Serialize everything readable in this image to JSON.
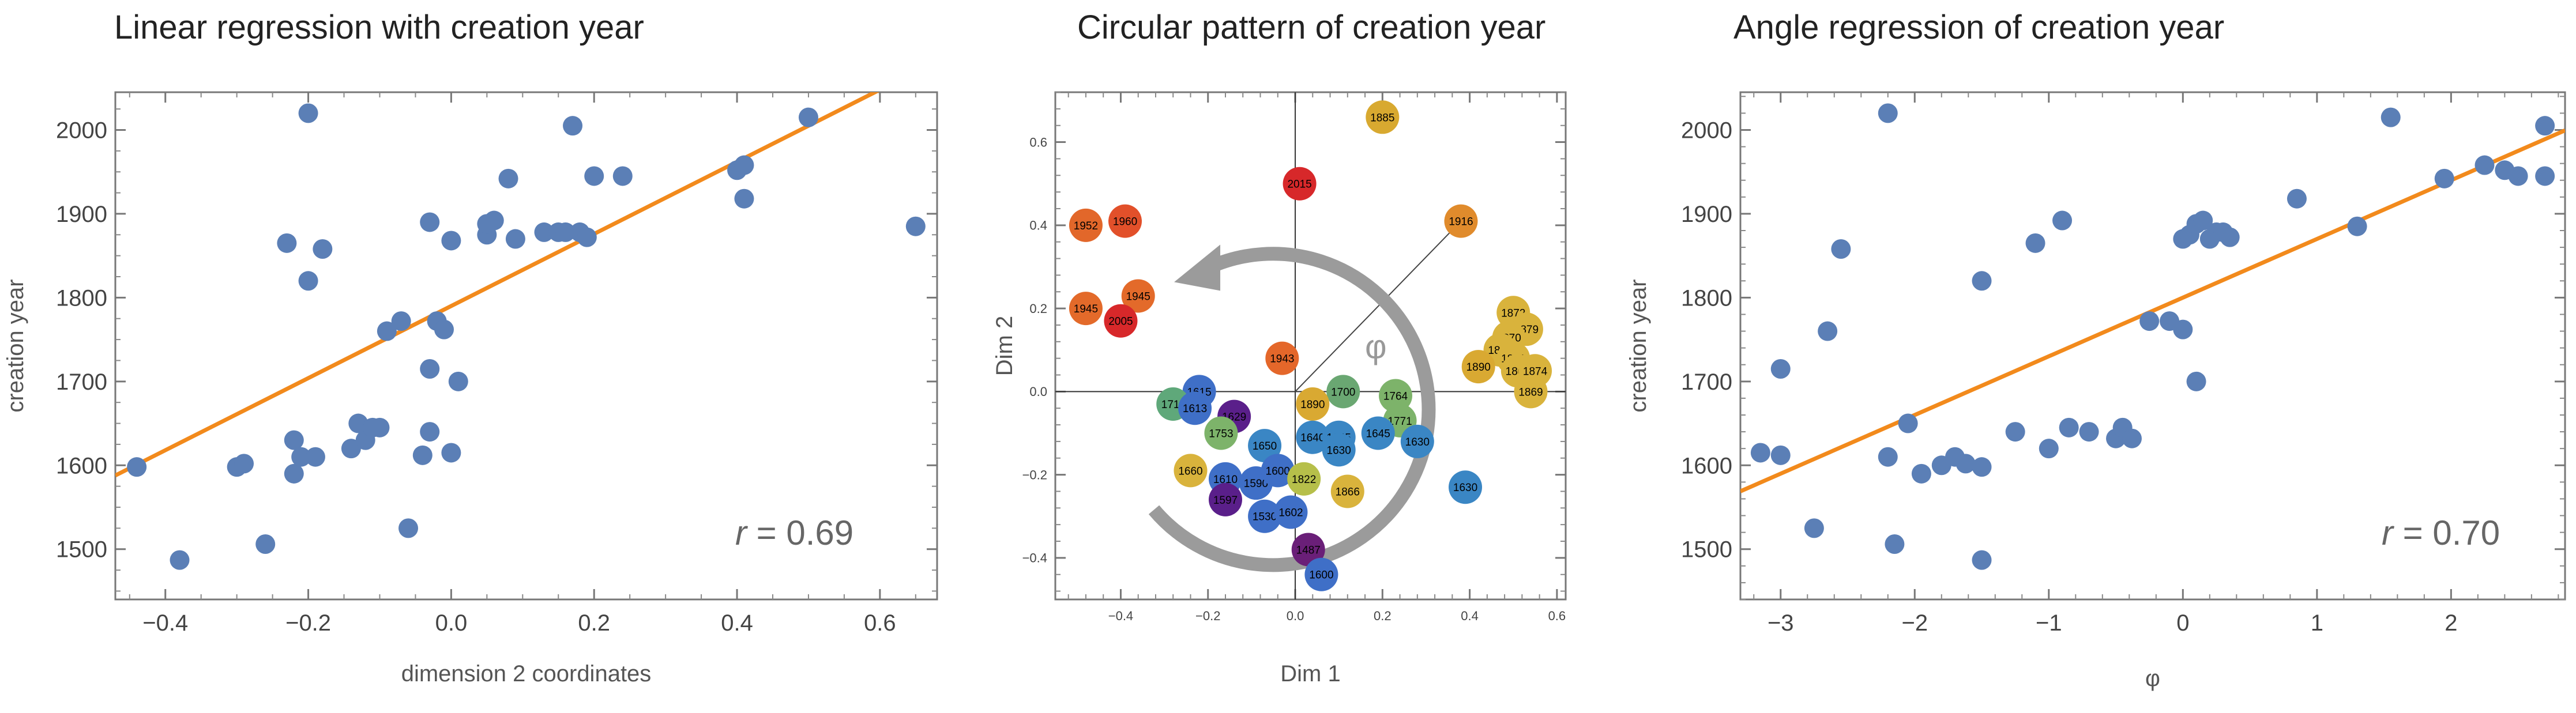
{
  "colors": {
    "point": "#5b7fb6",
    "fit": "#f28a1c",
    "arrow": "#9b9b9b"
  },
  "chart_data": [
    {
      "type": "scatter",
      "title": "Linear regression with creation year",
      "xlabel": "dimension 2 coordinates",
      "ylabel": "creation year",
      "xlim": [
        -0.47,
        0.68
      ],
      "ylim": [
        1440,
        2045
      ],
      "xticks": [
        "-0.4",
        "-0.2",
        "0.0",
        "0.2",
        "0.4",
        "0.6"
      ],
      "yticks": [
        "1500",
        "1600",
        "1700",
        "1800",
        "1900",
        "2000"
      ],
      "annotation": {
        "symbol": "r",
        "value": "= 0.69"
      },
      "fit_line": {
        "intercept": 1790,
        "slope": 430
      },
      "points": [
        [
          -0.44,
          1598
        ],
        [
          -0.38,
          1487
        ],
        [
          -0.3,
          1598
        ],
        [
          -0.29,
          1602
        ],
        [
          -0.26,
          1506
        ],
        [
          -0.23,
          1865
        ],
        [
          -0.22,
          1630
        ],
        [
          -0.22,
          1590
        ],
        [
          -0.21,
          1610
        ],
        [
          -0.2,
          1820
        ],
        [
          -0.2,
          2020
        ],
        [
          -0.19,
          1610
        ],
        [
          -0.18,
          1858
        ],
        [
          -0.14,
          1620
        ],
        [
          -0.13,
          1650
        ],
        [
          -0.12,
          1630
        ],
        [
          -0.11,
          1645
        ],
        [
          -0.1,
          1645
        ],
        [
          -0.09,
          1760
        ],
        [
          -0.07,
          1772
        ],
        [
          -0.06,
          1525
        ],
        [
          -0.04,
          1612
        ],
        [
          -0.03,
          1890
        ],
        [
          -0.03,
          1715
        ],
        [
          -0.03,
          1640
        ],
        [
          -0.02,
          1772
        ],
        [
          -0.01,
          1762
        ],
        [
          0.0,
          1868
        ],
        [
          0.0,
          1615
        ],
        [
          0.01,
          1700
        ],
        [
          0.05,
          1875
        ],
        [
          0.05,
          1888
        ],
        [
          0.06,
          1892
        ],
        [
          0.08,
          1942
        ],
        [
          0.09,
          1870
        ],
        [
          0.13,
          1878
        ],
        [
          0.15,
          1878
        ],
        [
          0.16,
          1878
        ],
        [
          0.17,
          2005
        ],
        [
          0.18,
          1878
        ],
        [
          0.19,
          1872
        ],
        [
          0.2,
          1945
        ],
        [
          0.24,
          1945
        ],
        [
          0.4,
          1952
        ],
        [
          0.41,
          1958
        ],
        [
          0.41,
          1918
        ],
        [
          0.5,
          2015
        ],
        [
          0.65,
          1885
        ]
      ]
    },
    {
      "type": "scatter",
      "title": "Circular pattern of creation year",
      "xlabel": "Dim 1",
      "ylabel": "Dim 2",
      "xlim": [
        -0.55,
        0.62
      ],
      "ylim": [
        -0.5,
        0.72
      ],
      "xticks": [
        "-0.4",
        "-0.2",
        "0.0",
        "0.2",
        "0.4",
        "0.6"
      ],
      "yticks": [
        "-0.4",
        "-0.2",
        "0.0",
        "0.2",
        "0.4",
        "0.6"
      ],
      "annotation": {
        "symbol": "φ"
      },
      "points": [
        {
          "x": 0.2,
          "y": 0.66,
          "label": "1885",
          "color": "#d8a930"
        },
        {
          "x": 0.01,
          "y": 0.5,
          "label": "2015",
          "color": "#d7282a"
        },
        {
          "x": -0.48,
          "y": 0.4,
          "label": "1952",
          "color": "#e2672a"
        },
        {
          "x": -0.39,
          "y": 0.41,
          "label": "1960",
          "color": "#e2502a"
        },
        {
          "x": 0.38,
          "y": 0.41,
          "label": "1916",
          "color": "#e08b2c"
        },
        {
          "x": -0.36,
          "y": 0.23,
          "label": "1945",
          "color": "#e36a2a"
        },
        {
          "x": -0.48,
          "y": 0.2,
          "label": "1945",
          "color": "#e36a2a"
        },
        {
          "x": -0.4,
          "y": 0.17,
          "label": "2005",
          "color": "#d7282a"
        },
        {
          "x": 0.5,
          "y": 0.19,
          "label": "1872",
          "color": "#d9b33c"
        },
        {
          "x": 0.53,
          "y": 0.15,
          "label": "1879",
          "color": "#d9b33c"
        },
        {
          "x": 0.49,
          "y": 0.13,
          "label": "1870",
          "color": "#d9b33c"
        },
        {
          "x": 0.47,
          "y": 0.1,
          "label": "1869",
          "color": "#d9b33c"
        },
        {
          "x": 0.5,
          "y": 0.08,
          "label": "1871",
          "color": "#d9b33c"
        },
        {
          "x": 0.42,
          "y": 0.06,
          "label": "1890",
          "color": "#d9a932"
        },
        {
          "x": 0.51,
          "y": 0.05,
          "label": "1868",
          "color": "#d9b33c"
        },
        {
          "x": 0.55,
          "y": 0.05,
          "label": "1874",
          "color": "#d9b33c"
        },
        {
          "x": 0.54,
          "y": 0.0,
          "label": "1869",
          "color": "#d9b33c"
        },
        {
          "x": -0.03,
          "y": 0.08,
          "label": "1943",
          "color": "#e4672a"
        },
        {
          "x": -0.22,
          "y": 0.0,
          "label": "1615",
          "color": "#3f6fc7"
        },
        {
          "x": -0.28,
          "y": -0.03,
          "label": "1711",
          "color": "#5fa87a"
        },
        {
          "x": -0.23,
          "y": -0.04,
          "label": "1613",
          "color": "#3f6fc7"
        },
        {
          "x": -0.14,
          "y": -0.06,
          "label": "1629",
          "color": "#5a1f8a"
        },
        {
          "x": -0.17,
          "y": -0.1,
          "label": "1753",
          "color": "#7db36a"
        },
        {
          "x": 0.11,
          "y": 0.0,
          "label": "1700",
          "color": "#6aa772"
        },
        {
          "x": 0.04,
          "y": -0.03,
          "label": "1890",
          "color": "#d9a932"
        },
        {
          "x": 0.23,
          "y": -0.01,
          "label": "1764",
          "color": "#7db36a"
        },
        {
          "x": 0.24,
          "y": -0.07,
          "label": "1771",
          "color": "#7db36a"
        },
        {
          "x": -0.07,
          "y": -0.13,
          "label": "1650",
          "color": "#3a86c4"
        },
        {
          "x": 0.04,
          "y": -0.11,
          "label": "1640",
          "color": "#3a86c4"
        },
        {
          "x": 0.1,
          "y": -0.11,
          "label": "1645",
          "color": "#3a86c4"
        },
        {
          "x": 0.1,
          "y": -0.14,
          "label": "1630",
          "color": "#3a86c4"
        },
        {
          "x": 0.19,
          "y": -0.1,
          "label": "1645",
          "color": "#3a86c4"
        },
        {
          "x": 0.28,
          "y": -0.12,
          "label": "1630",
          "color": "#3a86c4"
        },
        {
          "x": -0.24,
          "y": -0.19,
          "label": "1660",
          "color": "#d9b33c"
        },
        {
          "x": -0.16,
          "y": -0.21,
          "label": "1610",
          "color": "#3f6fc7"
        },
        {
          "x": -0.09,
          "y": -0.22,
          "label": "1590",
          "color": "#3f6fc7"
        },
        {
          "x": -0.04,
          "y": -0.19,
          "label": "1600",
          "color": "#3f6fc7"
        },
        {
          "x": 0.02,
          "y": -0.21,
          "label": "1822",
          "color": "#b6bf4a"
        },
        {
          "x": -0.16,
          "y": -0.26,
          "label": "1597",
          "color": "#5a1f8a"
        },
        {
          "x": -0.07,
          "y": -0.3,
          "label": "1530",
          "color": "#3f6fc7"
        },
        {
          "x": -0.01,
          "y": -0.29,
          "label": "1602",
          "color": "#3f6fc7"
        },
        {
          "x": 0.12,
          "y": -0.24,
          "label": "1866",
          "color": "#d9b33c"
        },
        {
          "x": 0.39,
          "y": -0.23,
          "label": "1630",
          "color": "#3a86c4"
        },
        {
          "x": 0.03,
          "y": -0.38,
          "label": "1487",
          "color": "#6a1f78"
        },
        {
          "x": 0.06,
          "y": -0.44,
          "label": "1600",
          "color": "#3f6fc7"
        }
      ]
    },
    {
      "type": "scatter",
      "title": "Angle regression of creation year",
      "xlabel": "φ",
      "ylabel": "creation year",
      "xlim": [
        -3.3,
        2.85
      ],
      "ylim": [
        1440,
        2045
      ],
      "xticks": [
        "-3",
        "-2",
        "-1",
        "0",
        "1",
        "2"
      ],
      "yticks": [
        "1500",
        "1600",
        "1700",
        "1800",
        "1900",
        "2000"
      ],
      "annotation": {
        "symbol": "r",
        "value": "= 0.70"
      },
      "fit_line": {
        "intercept": 1800,
        "slope": 70
      },
      "points": [
        [
          -3.15,
          1615
        ],
        [
          -3.0,
          1612
        ],
        [
          -3.0,
          1715
        ],
        [
          -2.75,
          1525
        ],
        [
          -2.65,
          1760
        ],
        [
          -2.55,
          1858
        ],
        [
          -2.2,
          2020
        ],
        [
          -2.2,
          1610
        ],
        [
          -2.15,
          1506
        ],
        [
          -2.05,
          1650
        ],
        [
          -1.95,
          1590
        ],
        [
          -1.8,
          1600
        ],
        [
          -1.7,
          1610
        ],
        [
          -1.62,
          1602
        ],
        [
          -1.5,
          1820
        ],
        [
          -1.5,
          1598
        ],
        [
          -1.5,
          1487
        ],
        [
          -1.25,
          1640
        ],
        [
          -1.1,
          1865
        ],
        [
          -1.0,
          1620
        ],
        [
          -0.9,
          1892
        ],
        [
          -0.85,
          1645
        ],
        [
          -0.7,
          1640
        ],
        [
          -0.5,
          1632
        ],
        [
          -0.45,
          1645
        ],
        [
          -0.38,
          1632
        ],
        [
          -0.25,
          1772
        ],
        [
          -0.1,
          1772
        ],
        [
          0.0,
          1762
        ],
        [
          0.0,
          1870
        ],
        [
          0.05,
          1875
        ],
        [
          0.1,
          1888
        ],
        [
          0.1,
          1700
        ],
        [
          0.15,
          1892
        ],
        [
          0.2,
          1870
        ],
        [
          0.25,
          1878
        ],
        [
          0.3,
          1878
        ],
        [
          0.35,
          1872
        ],
        [
          0.85,
          1918
        ],
        [
          1.3,
          1885
        ],
        [
          1.55,
          2015
        ],
        [
          1.95,
          1942
        ],
        [
          2.25,
          1958
        ],
        [
          2.4,
          1952
        ],
        [
          2.5,
          1945
        ],
        [
          2.7,
          2005
        ],
        [
          2.7,
          1945
        ]
      ]
    }
  ]
}
